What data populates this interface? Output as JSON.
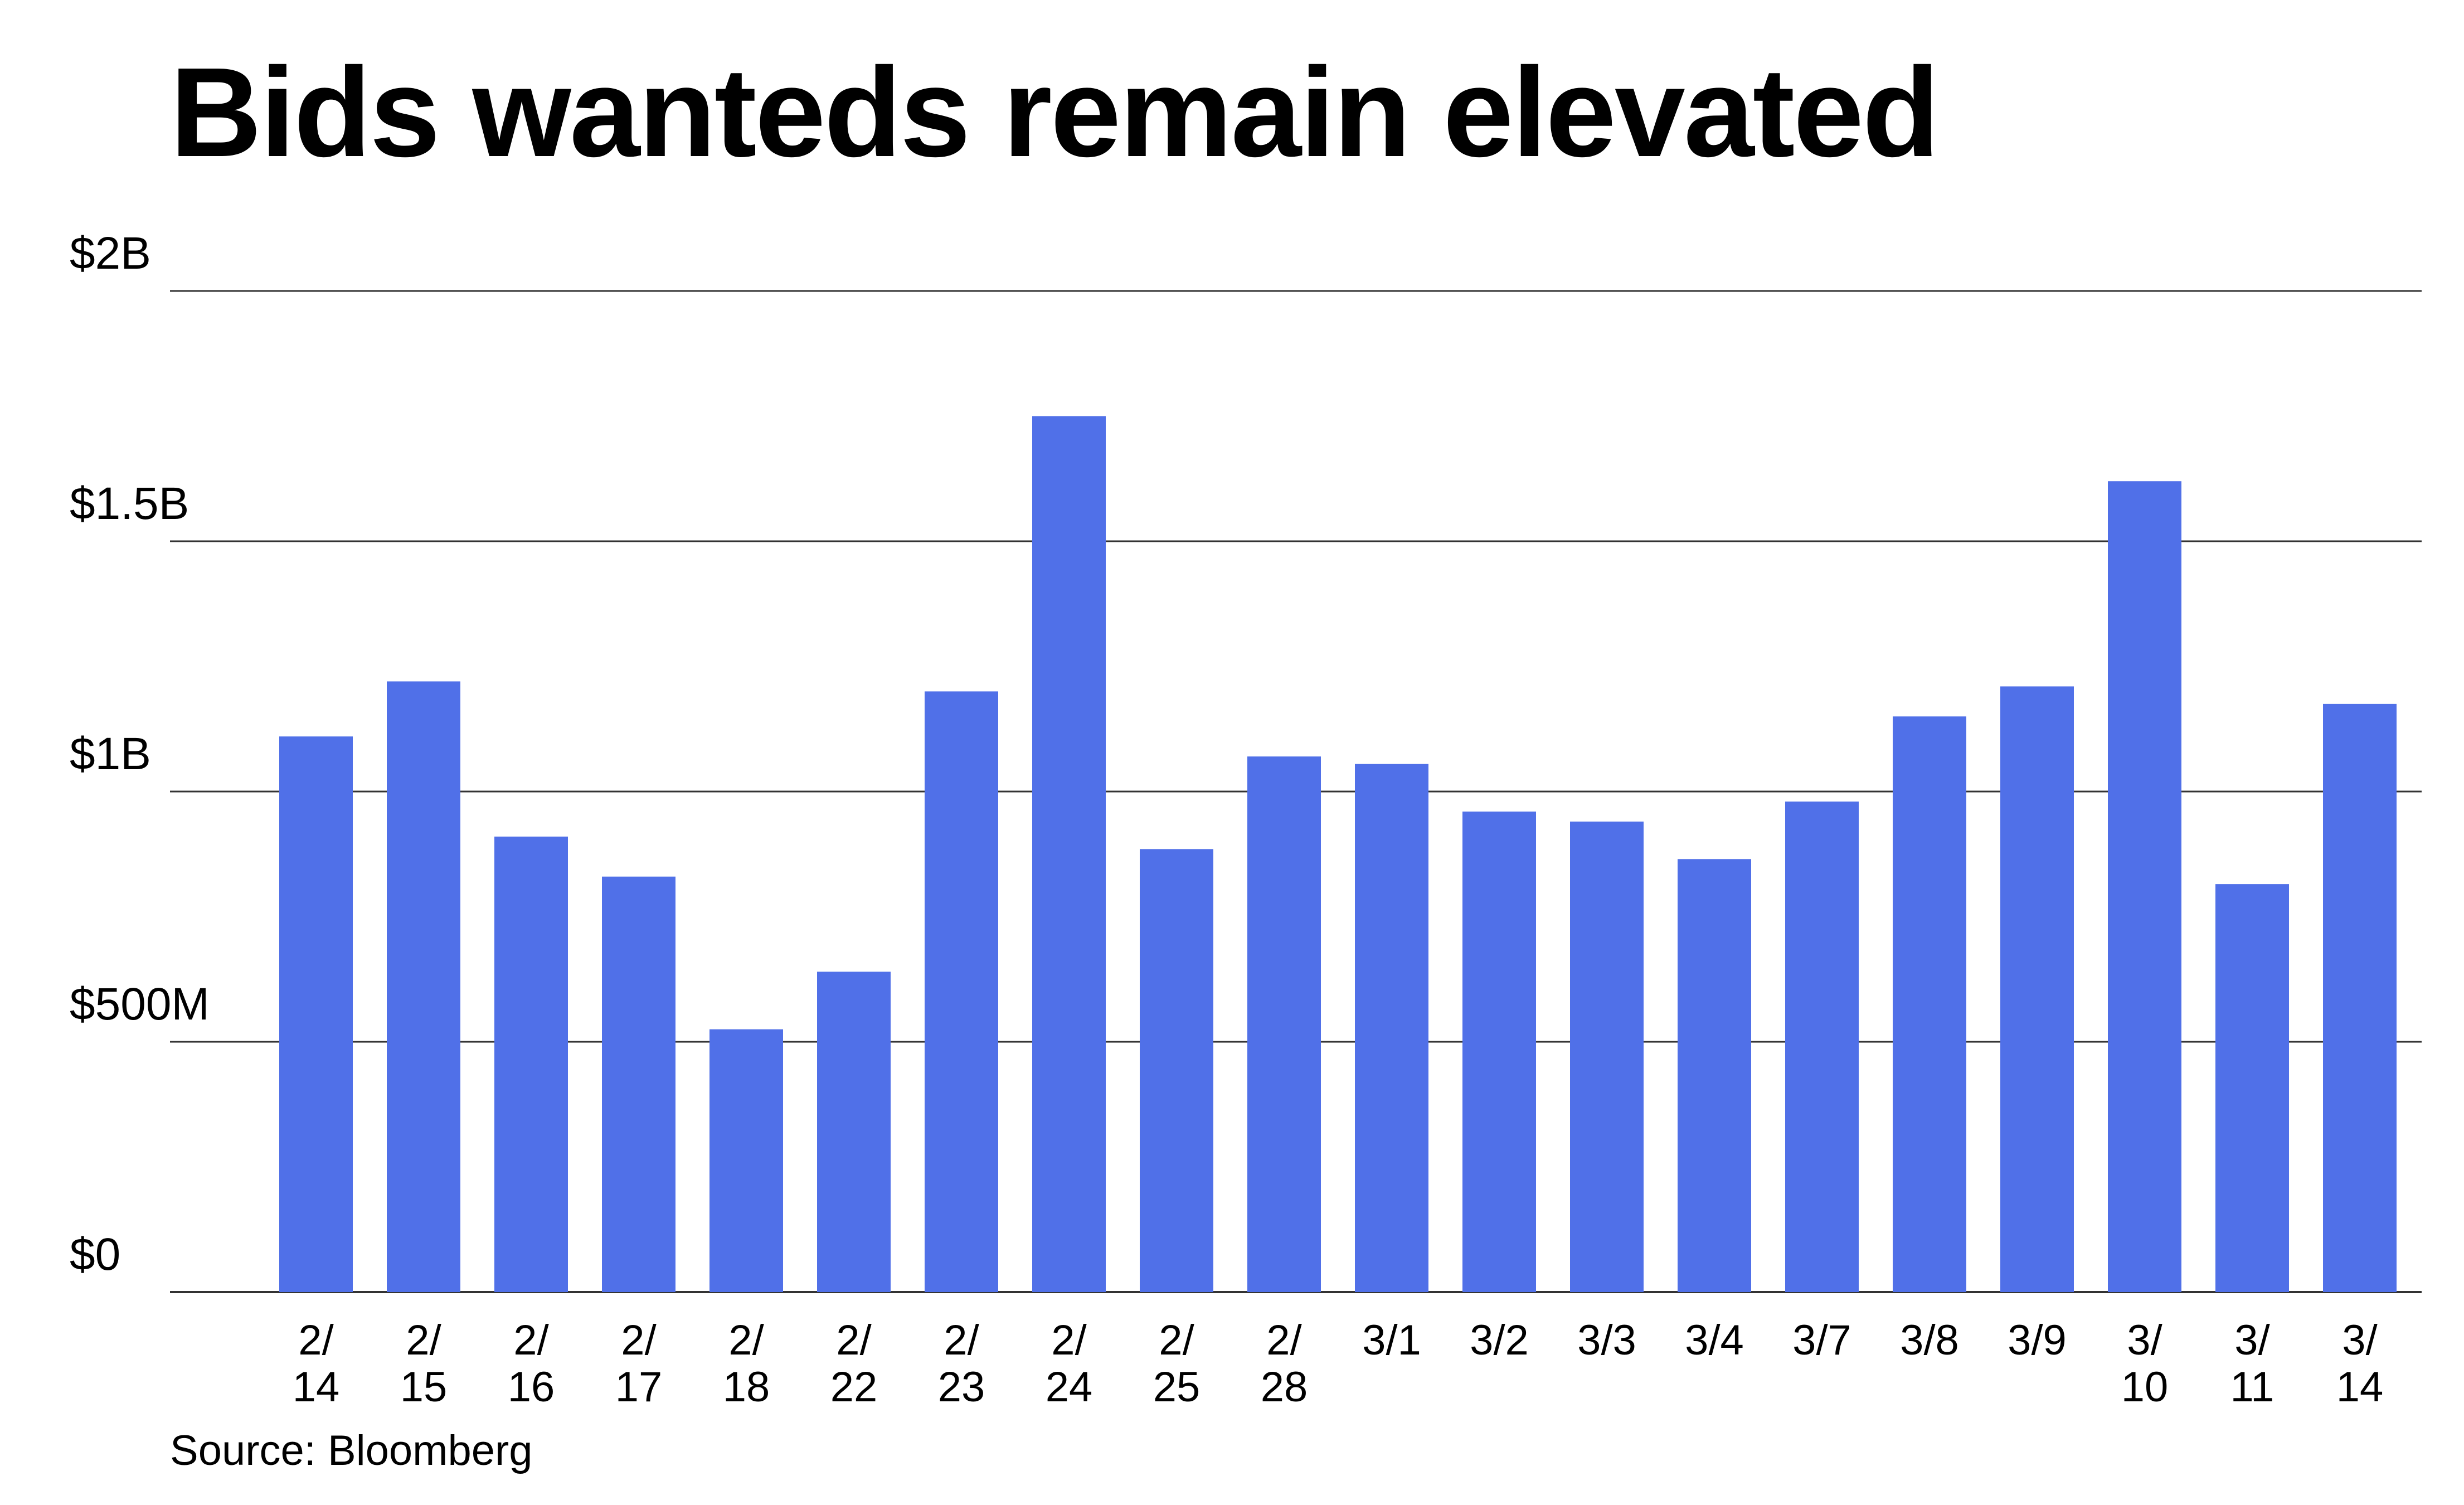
{
  "chart_data": {
    "type": "bar",
    "title": "Bids wanteds remain elevated",
    "source": "Source: Bloomberg",
    "xlabel": "",
    "ylabel": "",
    "unit": "USD",
    "ylim": [
      0,
      2000000000
    ],
    "yticks": [
      {
        "value": 0,
        "label": "$0"
      },
      {
        "value": 500000000,
        "label": "$500M"
      },
      {
        "value": 1000000000,
        "label": "$1B"
      },
      {
        "value": 1500000000,
        "label": "$1.5B"
      },
      {
        "value": 2000000000,
        "label": "$2B"
      }
    ],
    "grid": true,
    "color": "#5070e8",
    "categories": [
      [
        "2/",
        "14"
      ],
      [
        "2/",
        "15"
      ],
      [
        "2/",
        "16"
      ],
      [
        "2/",
        "17"
      ],
      [
        "2/",
        "18"
      ],
      [
        "2/",
        "22"
      ],
      [
        "2/",
        "23"
      ],
      [
        "2/",
        "24"
      ],
      [
        "2/",
        "25"
      ],
      [
        "2/",
        "28"
      ],
      [
        "3/1"
      ],
      [
        "3/2"
      ],
      [
        "3/3"
      ],
      [
        "3/4"
      ],
      [
        "3/7"
      ],
      [
        "3/8"
      ],
      [
        "3/9"
      ],
      [
        "3/",
        "10"
      ],
      [
        "3/",
        "11"
      ],
      [
        "3/",
        "14"
      ]
    ],
    "values": [
      1110000000,
      1220000000,
      910000000,
      830000000,
      525000000,
      640000000,
      1200000000,
      1750000000,
      885000000,
      1070000000,
      1055000000,
      960000000,
      940000000,
      865000000,
      980000000,
      1150000000,
      1210000000,
      1620000000,
      815000000,
      1175000000
    ]
  }
}
